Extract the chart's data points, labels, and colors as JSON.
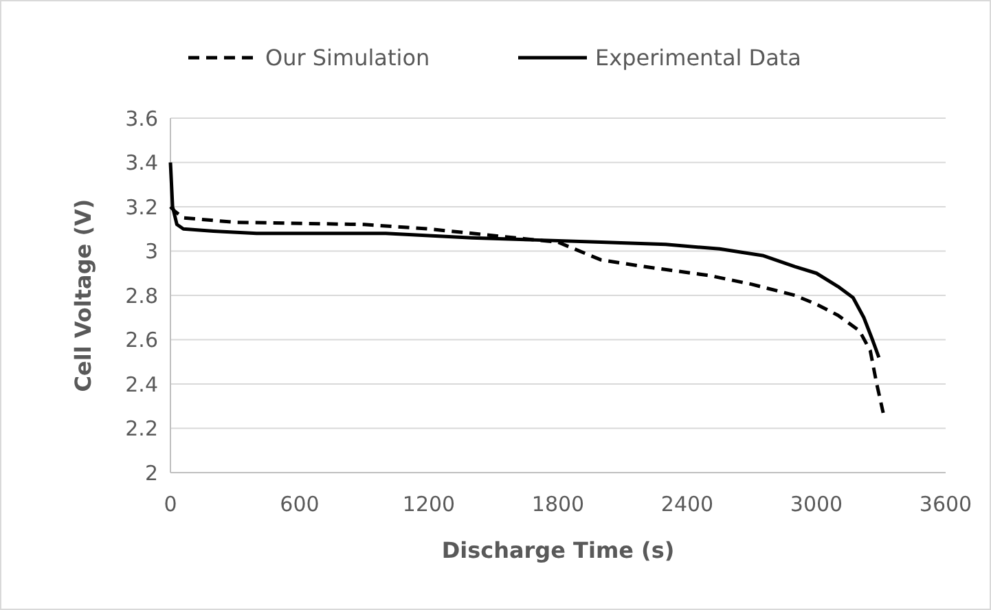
{
  "chart_data": {
    "type": "line",
    "xlabel": "Discharge Time (s)",
    "ylabel": "Cell Voltage (V)",
    "xlim": [
      0,
      3600
    ],
    "xticks": [
      0,
      600,
      1200,
      1800,
      2400,
      3000,
      3600
    ],
    "ylim": [
      2,
      3.6
    ],
    "yticks": [
      2,
      {
        "value": 2.2,
        "label": "2.2"
      },
      {
        "value": 2.4,
        "label": "2.4"
      },
      {
        "value": 2.6,
        "label": "2.6"
      },
      {
        "value": 2.8,
        "label": "2.8"
      },
      3,
      {
        "value": 3.2,
        "label": "3.2"
      },
      {
        "value": 3.4,
        "label": "3.4"
      },
      {
        "value": 3.6,
        "label": "3.6"
      }
    ],
    "grid": "y",
    "legend": "top",
    "series": [
      {
        "name": "Our Simulation",
        "color": "#000000",
        "line_style": "dashed",
        "x": [
          0,
          20,
          60,
          300,
          900,
          1200,
          1500,
          1800,
          2000,
          2200,
          2500,
          2700,
          2900,
          3000,
          3100,
          3200,
          3250,
          3280,
          3310
        ],
        "values": [
          3.2,
          3.18,
          3.15,
          3.13,
          3.12,
          3.1,
          3.07,
          3.04,
          2.96,
          2.93,
          2.89,
          2.85,
          2.8,
          2.76,
          2.71,
          2.64,
          2.55,
          2.4,
          2.27
        ]
      },
      {
        "name": "Experimental Data",
        "color": "#000000",
        "line_style": "solid",
        "x": [
          0,
          10,
          30,
          60,
          200,
          400,
          1000,
          1400,
          1700,
          2000,
          2300,
          2550,
          2750,
          2900,
          3000,
          3100,
          3170,
          3220,
          3260,
          3290
        ],
        "values": [
          3.4,
          3.2,
          3.12,
          3.1,
          3.09,
          3.08,
          3.08,
          3.06,
          3.05,
          3.04,
          3.03,
          3.01,
          2.98,
          2.93,
          2.9,
          2.84,
          2.79,
          2.7,
          2.6,
          2.52
        ]
      }
    ]
  }
}
